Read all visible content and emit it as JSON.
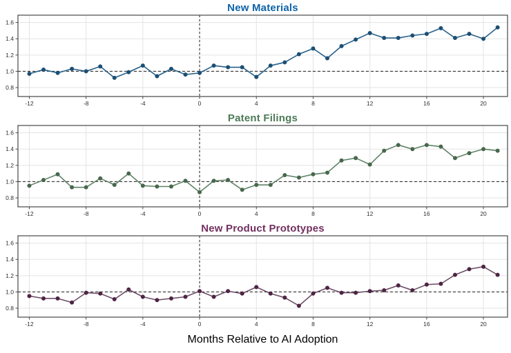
{
  "figure": {
    "xlabel": "Months Relative to AI Adoption",
    "grid_color": "#e3e3e3",
    "frame_color": "#474747",
    "ref_line_color": "#1a1a1a",
    "background": "#ffffff"
  },
  "chart_data": [
    {
      "type": "line",
      "title": "New Materials",
      "title_color": "#0f63a6",
      "line_color": "#27608a",
      "marker_color": "#1b4f74",
      "xlabel": "",
      "ylabel": "",
      "xlim": [
        -12.8,
        21.7
      ],
      "ylim": [
        0.69,
        1.69
      ],
      "xticks": [
        -12,
        -8,
        -4,
        0,
        4,
        8,
        12,
        16,
        20
      ],
      "yticks": [
        0.8,
        1.0,
        1.2,
        1.4,
        1.6
      ],
      "ref_line_y": 1.0,
      "ref_line_x": 0,
      "grid": true,
      "legend": "none",
      "x": [
        -12,
        -11,
        -10,
        -9,
        -8,
        -7,
        -6,
        -5,
        -4,
        -3,
        -2,
        -1,
        0,
        1,
        2,
        3,
        4,
        5,
        6,
        7,
        8,
        9,
        10,
        11,
        12,
        13,
        14,
        15,
        16,
        17,
        18,
        19,
        20,
        21
      ],
      "values": [
        0.97,
        1.02,
        0.98,
        1.03,
        1.0,
        1.06,
        0.92,
        0.99,
        1.07,
        0.94,
        1.03,
        0.96,
        0.98,
        1.07,
        1.05,
        1.05,
        0.93,
        1.07,
        1.11,
        1.21,
        1.28,
        1.16,
        1.31,
        1.39,
        1.47,
        1.41,
        1.41,
        1.44,
        1.46,
        1.53,
        1.41,
        1.46,
        1.4,
        1.54
      ]
    },
    {
      "type": "line",
      "title": "Patent Filings",
      "title_color": "#4d7a57",
      "line_color": "#5f8266",
      "marker_color": "#47684d",
      "xlabel": "",
      "ylabel": "",
      "xlim": [
        -12.8,
        21.7
      ],
      "ylim": [
        0.69,
        1.69
      ],
      "xticks": [
        -12,
        -8,
        -4,
        0,
        4,
        8,
        12,
        16,
        20
      ],
      "yticks": [
        0.8,
        1.0,
        1.2,
        1.4,
        1.6
      ],
      "ref_line_y": 1.0,
      "ref_line_x": 0,
      "grid": true,
      "legend": "none",
      "x": [
        -12,
        -11,
        -10,
        -9,
        -8,
        -7,
        -6,
        -5,
        -4,
        -3,
        -2,
        -1,
        0,
        1,
        2,
        3,
        4,
        5,
        6,
        7,
        8,
        9,
        10,
        11,
        12,
        13,
        14,
        15,
        16,
        17,
        18,
        19,
        20,
        21
      ],
      "values": [
        0.95,
        1.02,
        1.09,
        0.93,
        0.93,
        1.04,
        0.96,
        1.1,
        0.95,
        0.94,
        0.94,
        1.01,
        0.87,
        1.01,
        1.02,
        0.9,
        0.96,
        0.96,
        1.08,
        1.05,
        1.09,
        1.11,
        1.26,
        1.29,
        1.21,
        1.38,
        1.45,
        1.4,
        1.45,
        1.43,
        1.29,
        1.35,
        1.4,
        1.38
      ]
    },
    {
      "type": "line",
      "title": "New Product Prototypes",
      "title_color": "#72305f",
      "line_color": "#6e4e66",
      "marker_color": "#4e2443",
      "xlabel": "Months Relative to AI Adoption",
      "ylabel": "",
      "xlim": [
        -12.8,
        21.7
      ],
      "ylim": [
        0.69,
        1.69
      ],
      "xticks": [
        -12,
        -8,
        -4,
        0,
        4,
        8,
        12,
        16,
        20
      ],
      "yticks": [
        0.8,
        1.0,
        1.2,
        1.4,
        1.6
      ],
      "ref_line_y": 1.0,
      "ref_line_x": 0,
      "grid": true,
      "legend": "none",
      "x": [
        -12,
        -11,
        -10,
        -9,
        -8,
        -7,
        -6,
        -5,
        -4,
        -3,
        -2,
        -1,
        0,
        1,
        2,
        3,
        4,
        5,
        6,
        7,
        8,
        9,
        10,
        11,
        12,
        13,
        14,
        15,
        16,
        17,
        18,
        19,
        20,
        21
      ],
      "values": [
        0.95,
        0.92,
        0.92,
        0.87,
        0.99,
        0.98,
        0.91,
        1.03,
        0.94,
        0.9,
        0.92,
        0.94,
        1.01,
        0.94,
        1.01,
        0.98,
        1.06,
        0.98,
        0.93,
        0.83,
        0.98,
        1.05,
        0.99,
        0.99,
        1.01,
        1.02,
        1.08,
        1.02,
        1.09,
        1.1,
        1.21,
        1.28,
        1.31,
        1.21
      ]
    }
  ]
}
